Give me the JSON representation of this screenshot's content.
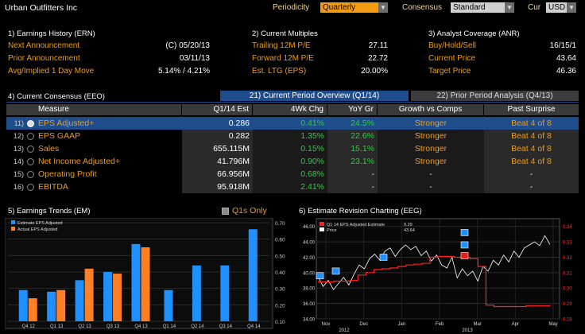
{
  "topbar": {
    "company": "Urban Outfitters Inc",
    "periodicity_label": "Periodicity",
    "periodicity_value": "Quarterly",
    "consensus_label": "Consensus",
    "consensus_value": "Standard",
    "cur_label": "Cur",
    "cur_value": "USD"
  },
  "earnings_history": {
    "title": "1) Earnings History (ERN)",
    "rows": [
      {
        "label": "Next Announcement",
        "value": "(C)  05/20/13"
      },
      {
        "label": "Prior Announcement",
        "value": "03/11/13"
      },
      {
        "label": "Avg/Implied 1 Day Move",
        "value": "5.14% / 4.21%"
      }
    ]
  },
  "current_multiples": {
    "title": "2) Current Multiples",
    "rows": [
      {
        "label": "Trailing 12M P/E",
        "value": "27.11"
      },
      {
        "label": "Forward 12M P/E",
        "value": "22.72"
      },
      {
        "label": "Est. LTG (EPS)",
        "value": "20.00%"
      }
    ]
  },
  "analyst_coverage": {
    "title": "3) Analyst Coverage (ANR)",
    "rows": [
      {
        "label": "Buy/Hold/Sell",
        "value": "16/15/1"
      },
      {
        "label": "Current Price",
        "value": "43.64"
      },
      {
        "label": "Target Price",
        "value": "46.36"
      }
    ]
  },
  "consensus": {
    "title": "4) Current Consensus (EEO)",
    "tab_active": "21) Current Period Overview (Q1/14)",
    "tab_inactive": "22) Prior Period Analysis (Q4/13)",
    "headers": [
      "Measure",
      "Q1/14 Est",
      "4Wk Chg",
      "YoY Gr",
      "Growth vs Comps",
      "Past Surprise"
    ],
    "rows": [
      {
        "num": "11)",
        "measure": "EPS Adjusted+",
        "est": "0.286",
        "chg4wk": "0.41%",
        "yoy": "24.5%",
        "growth": "Stronger",
        "surprise": "Beat 4 of 8"
      },
      {
        "num": "12)",
        "measure": "EPS GAAP",
        "est": "0.282",
        "chg4wk": "1.35%",
        "yoy": "22.6%",
        "growth": "Stronger",
        "surprise": "Beat 4 of 8"
      },
      {
        "num": "13)",
        "measure": "Sales",
        "est": "655.115M",
        "chg4wk": "0.15%",
        "yoy": "15.1%",
        "growth": "Stronger",
        "surprise": "Beat 4 of 8"
      },
      {
        "num": "14)",
        "measure": "Net Income Adjusted+",
        "est": "41.796M",
        "chg4wk": "0.90%",
        "yoy": "23.1%",
        "growth": "Stronger",
        "surprise": "Beat 4 of 8"
      },
      {
        "num": "15)",
        "measure": "Operating Profit",
        "est": "66.956M",
        "chg4wk": "0.68%",
        "yoy": "-",
        "growth": "-",
        "surprise": "-"
      },
      {
        "num": "16)",
        "measure": "EBITDA",
        "est": "95.918M",
        "chg4wk": "2.41%",
        "yoy": "-",
        "growth": "-",
        "surprise": "-"
      }
    ]
  },
  "earnings_trends": {
    "title": "5) Earnings Trends (EM)",
    "checkbox_label": "Q1s Only"
  },
  "revision_charting": {
    "title": "6) Estimate Revision Charting (EEG)"
  },
  "chart_data": [
    {
      "type": "bar",
      "legend": [
        "Estimate EPS Adjusted",
        "Actual EPS Adjusted"
      ],
      "categories": [
        "Q4 12",
        "Q1 13",
        "Q2 13",
        "Q3 13",
        "Q4 13",
        "Q1 14",
        "Q2 14",
        "Q3 14",
        "Q4 14"
      ],
      "series": [
        {
          "name": "Estimate EPS Adjusted",
          "color": "#1e90ff",
          "values": [
            0.29,
            0.28,
            0.35,
            0.4,
            0.57,
            0.29,
            0.44,
            0.44,
            0.66
          ]
        },
        {
          "name": "Actual EPS Adjusted",
          "color": "#ff7f24",
          "values": [
            0.24,
            0.29,
            0.42,
            0.39,
            0.55,
            null,
            null,
            null,
            null
          ]
        }
      ],
      "ylim": [
        0.1,
        0.7
      ],
      "yticks": [
        "0.10",
        "0.20",
        "0.30",
        "0.40",
        "0.50",
        "0.60",
        "0.70"
      ]
    },
    {
      "type": "line",
      "legend": [
        "Q1 14 EPS Adjusted Estimate",
        "Price"
      ],
      "legend_values": [
        "0.29",
        "43.64"
      ],
      "x_labels": [
        "Nov",
        "Dec",
        "Jan",
        "Feb",
        "Mar",
        "Apr",
        "May"
      ],
      "year_labels": [
        "2012",
        "2013"
      ],
      "left_axis": {
        "ylim": [
          34.0,
          47.0
        ],
        "ticks": [
          "34.00",
          "36.00",
          "38.00",
          "40.00",
          "42.00",
          "44.00",
          "46.00"
        ]
      },
      "right_axis": {
        "ylim": [
          0.28,
          0.345
        ],
        "ticks": [
          "0.28",
          "0.29",
          "0.30",
          "0.31",
          "0.32",
          "0.33",
          "0.34"
        ]
      },
      "series": [
        {
          "name": "Price",
          "color": "#ffffff",
          "values": [
            39.5,
            38.2,
            39.0,
            37.8,
            38.6,
            39.4,
            38.4,
            39.8,
            41.0,
            40.5,
            41.8,
            42.4,
            41.6,
            42.8,
            43.2,
            42.1,
            43.0,
            43.6,
            43.0,
            43.4,
            42.2,
            42.8,
            41.5,
            42.3,
            41.0,
            40.6,
            42.0,
            39.3,
            40.5,
            39.6,
            40.2,
            38.9,
            40.8,
            40.2,
            41.6,
            41.0,
            42.3,
            41.4,
            42.8,
            42.0,
            43.2,
            43.6,
            44.0,
            43.5,
            44.8,
            43.64
          ]
        },
        {
          "name": "Q1 14 EPS Adjusted Estimate",
          "color": "#ff2020",
          "values": [
            0.304,
            0.304,
            0.3045,
            0.3045,
            0.305,
            0.3085,
            0.31,
            0.312,
            0.3125,
            0.313,
            0.314,
            0.315,
            0.3155,
            0.316,
            0.32,
            0.3205,
            0.3205,
            0.32,
            0.32,
            0.319,
            0.314,
            0.289,
            0.288,
            0.288,
            0.288,
            0.288,
            0.2885,
            0.2885,
            0.2885,
            0.289
          ]
        }
      ]
    }
  ]
}
